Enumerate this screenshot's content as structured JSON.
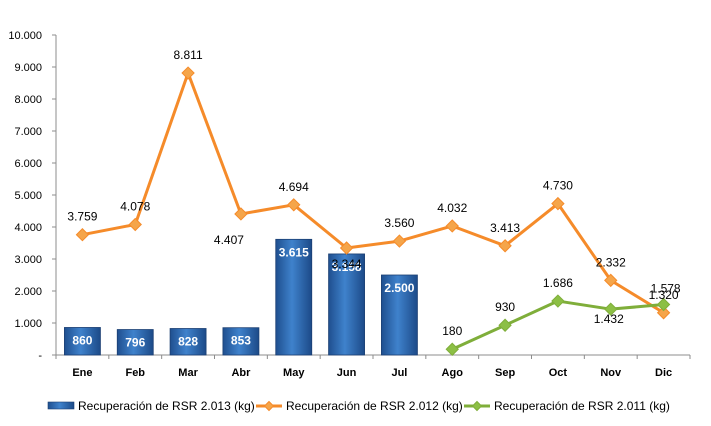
{
  "chart_data": {
    "type": "bar",
    "categories": [
      "Ene",
      "Feb",
      "Mar",
      "Abr",
      "May",
      "Jun",
      "Jul",
      "Ago",
      "Sep",
      "Oct",
      "Nov",
      "Dic"
    ],
    "ylim": [
      0,
      10000
    ],
    "yticks": [
      "-",
      "1.000",
      "2.000",
      "3.000",
      "4.000",
      "5.000",
      "6.000",
      "7.000",
      "8.000",
      "9.000",
      "10.000"
    ],
    "grid": false,
    "legend_position": "bottom",
    "series": [
      {
        "name": "Recuperación de RSR 2.013 (kg)",
        "kind": "bar",
        "color": "#2e6bb5",
        "values": [
          860,
          796,
          828,
          853,
          3615,
          3158,
          2500,
          null,
          null,
          null,
          null,
          null
        ],
        "labels": [
          "860",
          "796",
          "828",
          "853",
          "3.615",
          "3.158",
          "2.500",
          "",
          "",
          "",
          "",
          ""
        ]
      },
      {
        "name": "Recuperación de RSR 2.012 (kg)",
        "kind": "line",
        "color": "#f58b2a",
        "marker_color": "#f5a54a",
        "values": [
          3759,
          4078,
          8811,
          4407,
          4694,
          3344,
          3560,
          4032,
          3413,
          4730,
          2332,
          1320
        ],
        "labels": [
          "3.759",
          "4.078",
          "8.811",
          "4.407",
          "4.694",
          "3.344",
          "3.560",
          "4.032",
          "3.413",
          "4.730",
          "2.332",
          "1.320"
        ]
      },
      {
        "name": "Recuperación de RSR 2.011 (kg)",
        "kind": "line",
        "color": "#7fae3a",
        "marker_color": "#8cbf45",
        "values": [
          null,
          null,
          null,
          null,
          null,
          null,
          null,
          180,
          930,
          1686,
          1432,
          1578
        ],
        "labels": [
          "",
          "",
          "",
          "",
          "",
          "",
          "",
          "180",
          "930",
          "1.686",
          "1.432",
          "1.578"
        ]
      }
    ]
  }
}
